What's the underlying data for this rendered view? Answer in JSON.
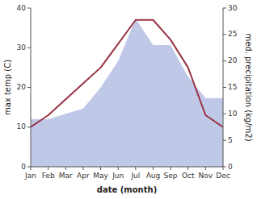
{
  "chart_data": {
    "type": "line",
    "xlabel": "date (month)",
    "ylabel": "max temp (C)",
    "y2label": "med. precipitation (kg/m2)",
    "categories": [
      "Jan",
      "Feb",
      "Mar",
      "Apr",
      "May",
      "Jun",
      "Jul",
      "Aug",
      "Sep",
      "Oct",
      "Nov",
      "Dec"
    ],
    "series": [
      {
        "type": "area",
        "axis": "y2",
        "color": "#c0c8e8",
        "values": [
          9,
          9,
          10,
          11,
          15,
          20,
          28,
          23,
          23,
          17,
          13,
          13
        ]
      },
      {
        "type": "line",
        "color": "#993344",
        "values": [
          10,
          13,
          17,
          21,
          25,
          31,
          37,
          37,
          32,
          25,
          13,
          10
        ]
      }
    ],
    "ylim": [
      0,
      40
    ],
    "yticks": [
      0,
      10,
      20,
      30,
      40
    ],
    "y2lim": [
      0,
      30
    ],
    "y2ticks": [
      0,
      5,
      10,
      15,
      20,
      25,
      30
    ]
  }
}
